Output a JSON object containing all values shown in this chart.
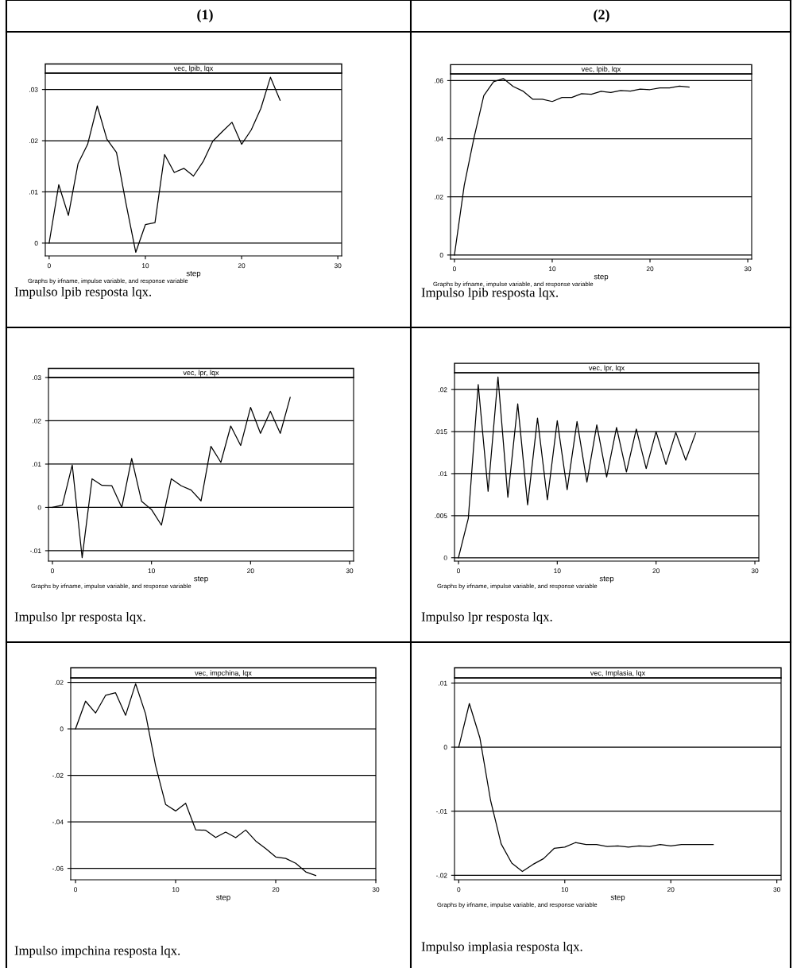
{
  "chart_data": [
    {
      "type": "line",
      "subtitle": "(1)",
      "title": "vec, lpib, lqx",
      "xlabel": "step",
      "annotations": [
        "Graphs by irfname, impulse variable, and response variable",
        "Impulso lpib resposta lqx."
      ],
      "x": [
        0,
        1,
        2,
        3,
        4,
        5,
        6,
        7,
        8,
        9,
        10,
        11,
        12,
        13,
        14,
        15,
        16,
        17,
        18,
        19,
        20,
        21,
        22,
        23,
        24
      ],
      "xlim": [
        -0.4,
        30.4
      ],
      "ylim": [
        -0.0025,
        0.0332
      ],
      "xticks": [
        0,
        10,
        20,
        30
      ],
      "yticks": [
        {
          "value": 0,
          "label": "0"
        },
        {
          "value": 0.01,
          "label": ".01"
        },
        {
          "value": 0.02,
          "label": ".02"
        },
        {
          "value": 0.03,
          "label": ".03"
        }
      ],
      "grid": "y",
      "series": [
        {
          "color": "#000000",
          "values": [
            0,
            0.0114,
            0.0054,
            0.0155,
            0.0193,
            0.0268,
            0.0203,
            0.0177,
            0.0076,
            -0.0018,
            0.0036,
            0.004,
            0.0173,
            0.0138,
            0.0146,
            0.0131,
            0.0159,
            0.0199,
            0.0218,
            0.0236,
            0.0193,
            0.0221,
            0.0263,
            0.0324,
            0.0279
          ]
        }
      ]
    },
    {
      "type": "line",
      "subtitle": "(2)",
      "title": "vec, lpib, lqx",
      "xlabel": "step",
      "annotations": [
        "Graphs by irfname, impulse variable, and response variable",
        "Impulso lpib resposta lqx."
      ],
      "x": [
        0,
        1,
        2,
        3,
        4,
        5,
        6,
        7,
        8,
        9,
        10,
        11,
        12,
        13,
        14,
        15,
        16,
        17,
        18,
        19,
        20,
        21,
        22,
        23,
        24
      ],
      "xlim": [
        -0.4,
        30.4
      ],
      "ylim": [
        -0.0014,
        0.0623
      ],
      "xticks": [
        0,
        10,
        20,
        30
      ],
      "yticks": [
        {
          "value": 0,
          "label": "0"
        },
        {
          "value": 0.02,
          "label": ".02"
        },
        {
          "value": 0.04,
          "label": ".04"
        },
        {
          "value": 0.06,
          "label": ".06"
        }
      ],
      "grid": "y",
      "series": [
        {
          "color": "#000000",
          "values": [
            0,
            0.0239,
            0.0403,
            0.0548,
            0.0596,
            0.0607,
            0.058,
            0.0564,
            0.0536,
            0.0536,
            0.0528,
            0.0542,
            0.0542,
            0.0555,
            0.0553,
            0.0563,
            0.0559,
            0.0566,
            0.0564,
            0.0571,
            0.0569,
            0.0575,
            0.0575,
            0.0581,
            0.0578
          ]
        }
      ]
    },
    {
      "type": "line",
      "title": "vec, lpr, lqx",
      "xlabel": "step",
      "annotations": [
        "Graphs by irfname, impulse variable, and response variable",
        "Impulso lpr resposta lqx."
      ],
      "x": [
        0,
        1,
        2,
        3,
        4,
        5,
        6,
        7,
        8,
        9,
        10,
        11,
        12,
        13,
        14,
        15,
        16,
        17,
        18,
        19,
        20,
        21,
        22,
        23,
        24
      ],
      "xlim": [
        -0.4,
        30.4
      ],
      "ylim": [
        -0.0124,
        0.03
      ],
      "xticks": [
        0,
        10,
        20,
        30
      ],
      "yticks": [
        {
          "value": -0.01,
          "label": "-.01"
        },
        {
          "value": 0,
          "label": "0"
        },
        {
          "value": 0.01,
          "label": ".01"
        },
        {
          "value": 0.02,
          "label": ".02"
        },
        {
          "value": 0.03,
          "label": ".03"
        }
      ],
      "grid": "y",
      "series": [
        {
          "color": "#000000",
          "values": [
            0,
            0.0005,
            0.0098,
            -0.0116,
            0.0066,
            0.0051,
            0.005,
            0,
            0.0113,
            0.0014,
            -0.0005,
            -0.0041,
            0.0066,
            0.005,
            0.004,
            0.0015,
            0.0141,
            0.0104,
            0.0188,
            0.0143,
            0.0231,
            0.0171,
            0.0222,
            0.0171,
            0.0254
          ]
        }
      ]
    },
    {
      "type": "line",
      "title": "vec, lpr, lqx",
      "xlabel": "step",
      "annotations": [
        "Graphs by irfname, impulse variable, and response variable",
        "Impulso lpr resposta lqx."
      ],
      "x": [
        0,
        1,
        2,
        3,
        4,
        5,
        6,
        7,
        8,
        9,
        10,
        11,
        12,
        13,
        14,
        15,
        16,
        17,
        18,
        19,
        20,
        21,
        22,
        23,
        24
      ],
      "xlim": [
        -0.4,
        30.4
      ],
      "ylim": [
        -0.0004,
        0.022
      ],
      "xticks": [
        0,
        10,
        20,
        30
      ],
      "yticks": [
        {
          "value": 0,
          "label": "0"
        },
        {
          "value": 0.005,
          "label": ".005"
        },
        {
          "value": 0.01,
          "label": ".01"
        },
        {
          "value": 0.015,
          "label": ".015"
        },
        {
          "value": 0.02,
          "label": ".02"
        }
      ],
      "grid": "y",
      "series": [
        {
          "color": "#000000",
          "values": [
            0,
            0.0047,
            0.0206,
            0.0079,
            0.0215,
            0.0072,
            0.0183,
            0.0063,
            0.0166,
            0.0069,
            0.0163,
            0.0081,
            0.0162,
            0.009,
            0.0158,
            0.0096,
            0.0155,
            0.0102,
            0.0153,
            0.0106,
            0.015,
            0.0111,
            0.0149,
            0.0116,
            0.0148
          ]
        }
      ]
    },
    {
      "type": "line",
      "title": "vec, impchina, lqx",
      "xlabel": "step",
      "annotations": [
        "Impulso impchina resposta lqx."
      ],
      "x": [
        0,
        1,
        2,
        3,
        4,
        5,
        6,
        7,
        8,
        9,
        10,
        11,
        12,
        13,
        14,
        15,
        16,
        17,
        18,
        19,
        20,
        21,
        22,
        23,
        24
      ],
      "xlim": [
        -0.48,
        30
      ],
      "ylim": [
        -0.0649,
        0.0219
      ],
      "xticks": [
        0,
        10,
        20,
        30
      ],
      "yticks": [
        {
          "value": -0.06,
          "label": "-.06"
        },
        {
          "value": -0.04,
          "label": "-.04"
        },
        {
          "value": -0.02,
          "label": "-.02"
        },
        {
          "value": 0,
          "label": "0"
        },
        {
          "value": 0.02,
          "label": ".02"
        }
      ],
      "grid": "y",
      "series": [
        {
          "color": "#000000",
          "values": [
            0,
            0.0119,
            0.0068,
            0.0144,
            0.0155,
            0.0058,
            0.0194,
            0.0064,
            -0.0158,
            -0.0325,
            -0.0353,
            -0.032,
            -0.0434,
            -0.0436,
            -0.0467,
            -0.0444,
            -0.0468,
            -0.0435,
            -0.0482,
            -0.0515,
            -0.0551,
            -0.0557,
            -0.0578,
            -0.0615,
            -0.0631
          ]
        }
      ]
    },
    {
      "type": "line",
      "title": "vec, Implasia, lqx",
      "xlabel": "step",
      "annotations": [
        "Graphs by irfname, impulse variable, and response variable",
        "Impulso implasia resposta lqx."
      ],
      "x": [
        0,
        1,
        2,
        3,
        4,
        5,
        6,
        7,
        8,
        9,
        10,
        11,
        12,
        13,
        14,
        15,
        16,
        17,
        18,
        19,
        20,
        21,
        22,
        23,
        24
      ],
      "xlim": [
        -0.4,
        30.4
      ],
      "ylim": [
        -0.0207,
        0.0108
      ],
      "xticks": [
        0,
        10,
        20,
        30
      ],
      "yticks": [
        {
          "value": -0.02,
          "label": "-.02"
        },
        {
          "value": -0.01,
          "label": "-.01"
        },
        {
          "value": 0,
          "label": "0"
        },
        {
          "value": 0.01,
          "label": ".01"
        }
      ],
      "grid": "y",
      "series": [
        {
          "color": "#000000",
          "values": [
            0,
            0.0068,
            0.0014,
            -0.0083,
            -0.0151,
            -0.0181,
            -0.0194,
            -0.0183,
            -0.0174,
            -0.0158,
            -0.0156,
            -0.0149,
            -0.0152,
            -0.0152,
            -0.0155,
            -0.0154,
            -0.0156,
            -0.0154,
            -0.0155,
            -0.0152,
            -0.0154,
            -0.0152,
            -0.0152,
            -0.0152,
            -0.0152
          ]
        }
      ]
    }
  ]
}
